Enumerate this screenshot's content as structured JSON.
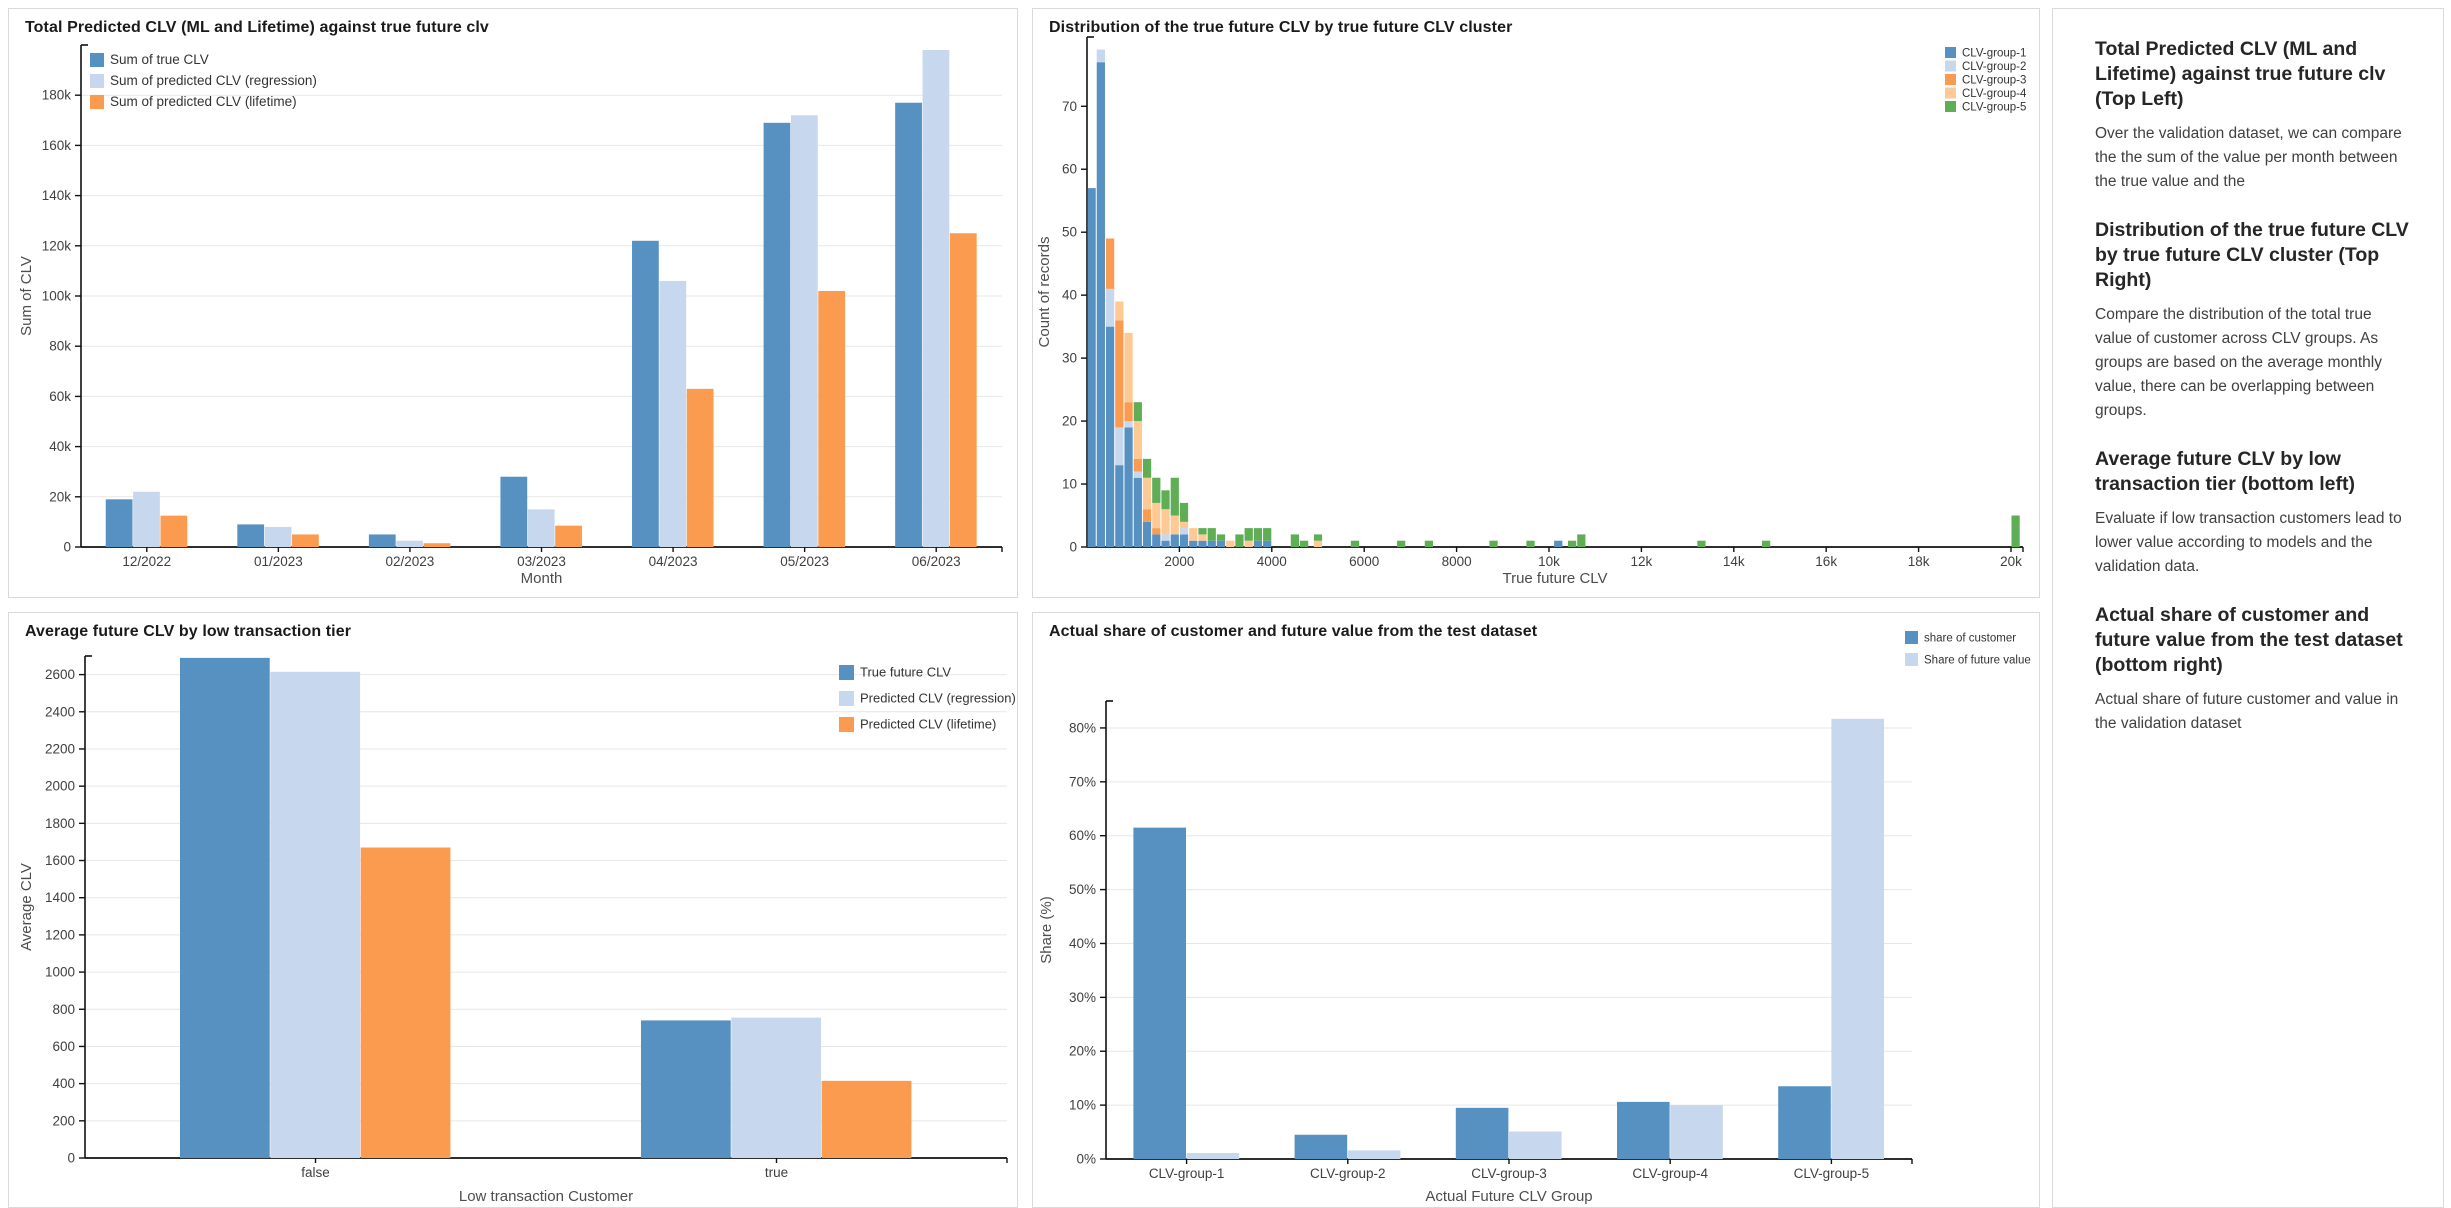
{
  "colors": {
    "blue": "#5791c2",
    "lightblue": "#c6d7ee",
    "orange": "#fb9b50",
    "lightorange": "#fdca96",
    "green": "#5fae56",
    "grid": "#e7e7e7",
    "axis": "#111111",
    "tick": "#404040",
    "axisTitle": "#4d4d4d",
    "legendText": "#333333",
    "panelBorder": "#d9d9d9"
  },
  "chart_data": [
    {
      "id": "tl",
      "type": "bar",
      "title": "Total Predicted CLV (ML and Lifetime) against true future clv",
      "xlabel": "Month",
      "ylabel": "Sum of CLV",
      "categories": [
        "12/2022",
        "01/2023",
        "02/2023",
        "03/2023",
        "04/2023",
        "05/2023",
        "06/2023"
      ],
      "series": [
        {
          "name": "Sum of true CLV",
          "color": "blue",
          "values": [
            19000,
            9000,
            5000,
            28000,
            122000,
            169000,
            177000
          ]
        },
        {
          "name": "Sum of predicted CLV (regression)",
          "color": "lightblue",
          "values": [
            22000,
            8000,
            2500,
            15000,
            106000,
            172000,
            198000
          ]
        },
        {
          "name": "Sum of predicted CLV (lifetime)",
          "color": "orange",
          "values": [
            12500,
            5000,
            1500,
            8500,
            63000,
            102000,
            125000
          ]
        }
      ],
      "ylim": [
        0,
        200000
      ],
      "yticks": [
        {
          "v": 0,
          "label": "0"
        },
        {
          "v": 20000,
          "label": "20k"
        },
        {
          "v": 40000,
          "label": "40k"
        },
        {
          "v": 60000,
          "label": "60k"
        },
        {
          "v": 80000,
          "label": "80k"
        },
        {
          "v": 100000,
          "label": "100k"
        },
        {
          "v": 120000,
          "label": "120k"
        },
        {
          "v": 140000,
          "label": "140k"
        },
        {
          "v": 160000,
          "label": "160k"
        },
        {
          "v": 180000,
          "label": "180k"
        }
      ],
      "legend_position": "top-left-inside",
      "grid": true
    },
    {
      "id": "tr",
      "type": "histogram-stacked",
      "title": "Distribution of the true future CLV by true future CLV cluster",
      "xlabel": "True future CLV",
      "ylabel": "Count of records",
      "groups": [
        "CLV-group-1",
        "CLV-group-2",
        "CLV-group-3",
        "CLV-group-4",
        "CLV-group-5"
      ],
      "group_colors": [
        "blue",
        "lightblue",
        "orange",
        "lightorange",
        "green"
      ],
      "bin_width": 200,
      "bins": [
        {
          "x": 0,
          "c": [
            57,
            0,
            0,
            0,
            0
          ]
        },
        {
          "x": 200,
          "c": [
            77,
            2,
            0,
            0,
            0
          ]
        },
        {
          "x": 400,
          "c": [
            35,
            6,
            8,
            0,
            0
          ]
        },
        {
          "x": 600,
          "c": [
            13,
            6,
            17,
            3,
            0
          ]
        },
        {
          "x": 800,
          "c": [
            19,
            1,
            3,
            11,
            0
          ]
        },
        {
          "x": 1000,
          "c": [
            11,
            1,
            2,
            6,
            3
          ]
        },
        {
          "x": 1200,
          "c": [
            4,
            0,
            2,
            5,
            3
          ]
        },
        {
          "x": 1400,
          "c": [
            2,
            0,
            1,
            4,
            4
          ]
        },
        {
          "x": 1600,
          "c": [
            1,
            1,
            0,
            4,
            3
          ]
        },
        {
          "x": 1800,
          "c": [
            2,
            0,
            0,
            3,
            6
          ]
        },
        {
          "x": 2000,
          "c": [
            2,
            1,
            0,
            1,
            3
          ]
        },
        {
          "x": 2200,
          "c": [
            1,
            0,
            0,
            2,
            0
          ]
        },
        {
          "x": 2400,
          "c": [
            1,
            0,
            0,
            1,
            1
          ]
        },
        {
          "x": 2600,
          "c": [
            1,
            0,
            0,
            0,
            2
          ]
        },
        {
          "x": 2800,
          "c": [
            1,
            0,
            0,
            0,
            1
          ]
        },
        {
          "x": 3000,
          "c": [
            0,
            0,
            0,
            1,
            0
          ]
        },
        {
          "x": 3200,
          "c": [
            0,
            0,
            0,
            0,
            2
          ]
        },
        {
          "x": 3400,
          "c": [
            0,
            0,
            0,
            1,
            2
          ]
        },
        {
          "x": 3600,
          "c": [
            1,
            0,
            0,
            0,
            2
          ]
        },
        {
          "x": 3800,
          "c": [
            1,
            0,
            0,
            0,
            2
          ]
        },
        {
          "x": 4400,
          "c": [
            0,
            0,
            0,
            0,
            2
          ]
        },
        {
          "x": 4600,
          "c": [
            0,
            0,
            0,
            0,
            1
          ]
        },
        {
          "x": 4900,
          "c": [
            0,
            0,
            0,
            1,
            1
          ]
        },
        {
          "x": 5700,
          "c": [
            0,
            0,
            0,
            0,
            1
          ]
        },
        {
          "x": 6700,
          "c": [
            0,
            0,
            0,
            0,
            1
          ]
        },
        {
          "x": 7300,
          "c": [
            0,
            0,
            0,
            0,
            1
          ]
        },
        {
          "x": 8700,
          "c": [
            0,
            0,
            0,
            0,
            1
          ]
        },
        {
          "x": 9500,
          "c": [
            0,
            0,
            0,
            0,
            1
          ]
        },
        {
          "x": 10100,
          "c": [
            1,
            0,
            0,
            0,
            0
          ]
        },
        {
          "x": 10400,
          "c": [
            0,
            0,
            0,
            0,
            1
          ]
        },
        {
          "x": 10600,
          "c": [
            0,
            0,
            0,
            0,
            2
          ]
        },
        {
          "x": 13200,
          "c": [
            0,
            0,
            0,
            0,
            1
          ]
        },
        {
          "x": 14600,
          "c": [
            0,
            0,
            0,
            0,
            1
          ]
        },
        {
          "x": 20000,
          "c": [
            0,
            0,
            0,
            0,
            5
          ]
        }
      ],
      "xlim": [
        0,
        20260
      ],
      "ylim": [
        0,
        81
      ],
      "xticks": [
        {
          "v": 2000,
          "label": "2000"
        },
        {
          "v": 4000,
          "label": "4000"
        },
        {
          "v": 6000,
          "label": "6000"
        },
        {
          "v": 8000,
          "label": "8000"
        },
        {
          "v": 10000,
          "label": "10k"
        },
        {
          "v": 12000,
          "label": "12k"
        },
        {
          "v": 14000,
          "label": "14k"
        },
        {
          "v": 16000,
          "label": "16k"
        },
        {
          "v": 18000,
          "label": "18k"
        },
        {
          "v": 20000,
          "label": "20k"
        }
      ],
      "yticks": [
        {
          "v": 0,
          "label": "0"
        },
        {
          "v": 10,
          "label": "10"
        },
        {
          "v": 20,
          "label": "20"
        },
        {
          "v": 30,
          "label": "30"
        },
        {
          "v": 40,
          "label": "40"
        },
        {
          "v": 50,
          "label": "50"
        },
        {
          "v": 60,
          "label": "60"
        },
        {
          "v": 70,
          "label": "70"
        }
      ],
      "legend_position": "top-right",
      "grid": false
    },
    {
      "id": "bl",
      "type": "bar",
      "title": "Average future CLV by low transaction tier",
      "xlabel": "Low transaction Customer",
      "ylabel": "Average CLV",
      "categories": [
        "false",
        "true"
      ],
      "series": [
        {
          "name": "True future CLV",
          "color": "blue",
          "values": [
            2690,
            740
          ]
        },
        {
          "name": "Predicted CLV (regression)",
          "color": "lightblue",
          "values": [
            2615,
            755
          ]
        },
        {
          "name": "Predicted CLV (lifetime)",
          "color": "orange",
          "values": [
            1670,
            415
          ]
        }
      ],
      "ylim": [
        0,
        2700
      ],
      "yticks": [
        {
          "v": 0,
          "label": "0"
        },
        {
          "v": 200,
          "label": "200"
        },
        {
          "v": 400,
          "label": "400"
        },
        {
          "v": 600,
          "label": "600"
        },
        {
          "v": 800,
          "label": "800"
        },
        {
          "v": 1000,
          "label": "1000"
        },
        {
          "v": 1200,
          "label": "1200"
        },
        {
          "v": 1400,
          "label": "1400"
        },
        {
          "v": 1600,
          "label": "1600"
        },
        {
          "v": 1800,
          "label": "1800"
        },
        {
          "v": 2000,
          "label": "2000"
        },
        {
          "v": 2200,
          "label": "2200"
        },
        {
          "v": 2400,
          "label": "2400"
        },
        {
          "v": 2600,
          "label": "2600"
        }
      ],
      "legend_position": "top-right-inside",
      "grid": true
    },
    {
      "id": "br",
      "type": "bar",
      "title": "Actual share of customer and future value from the test dataset",
      "xlabel": "Actual Future CLV Group",
      "ylabel": "Share (%)",
      "categories": [
        "CLV-group-1",
        "CLV-group-2",
        "CLV-group-3",
        "CLV-group-4",
        "CLV-group-5"
      ],
      "series": [
        {
          "name": "share of customer",
          "color": "blue",
          "values": [
            61.5,
            4.5,
            9.5,
            10.6,
            13.5
          ]
        },
        {
          "name": "Share of future value",
          "color": "lightblue",
          "values": [
            1.1,
            1.6,
            5.1,
            10.0,
            81.7
          ]
        }
      ],
      "ylim": [
        0,
        85
      ],
      "yticks": [
        {
          "v": 0,
          "label": "0%"
        },
        {
          "v": 10,
          "label": "10%"
        },
        {
          "v": 20,
          "label": "20%"
        },
        {
          "v": 30,
          "label": "30%"
        },
        {
          "v": 40,
          "label": "40%"
        },
        {
          "v": 50,
          "label": "50%"
        },
        {
          "v": 60,
          "label": "60%"
        },
        {
          "v": 70,
          "label": "70%"
        },
        {
          "v": 80,
          "label": "80%"
        }
      ],
      "legend_position": "top-right",
      "grid": true
    }
  ],
  "notes": {
    "sections": [
      {
        "heading": "Total Predicted CLV (ML and Lifetime) against true future clv (Top Left)",
        "body": "Over the validation dataset, we can compare the the sum of the value per month between the true value and the"
      },
      {
        "heading": "Distribution of the true future CLV by true future CLV cluster (Top Right)",
        "body": "Compare the distribution of the total true value of customer across CLV groups. As groups are based on the average monthly value, there can be overlapping between groups."
      },
      {
        "heading": "Average future CLV by low transaction tier (bottom left)",
        "body": "Evaluate if low transaction customers lead to lower value according to models and the validation data."
      },
      {
        "heading": "Actual share of customer and future value from the test dataset (bottom right)",
        "body": "Actual share of future customer and value in the validation dataset"
      }
    ]
  }
}
